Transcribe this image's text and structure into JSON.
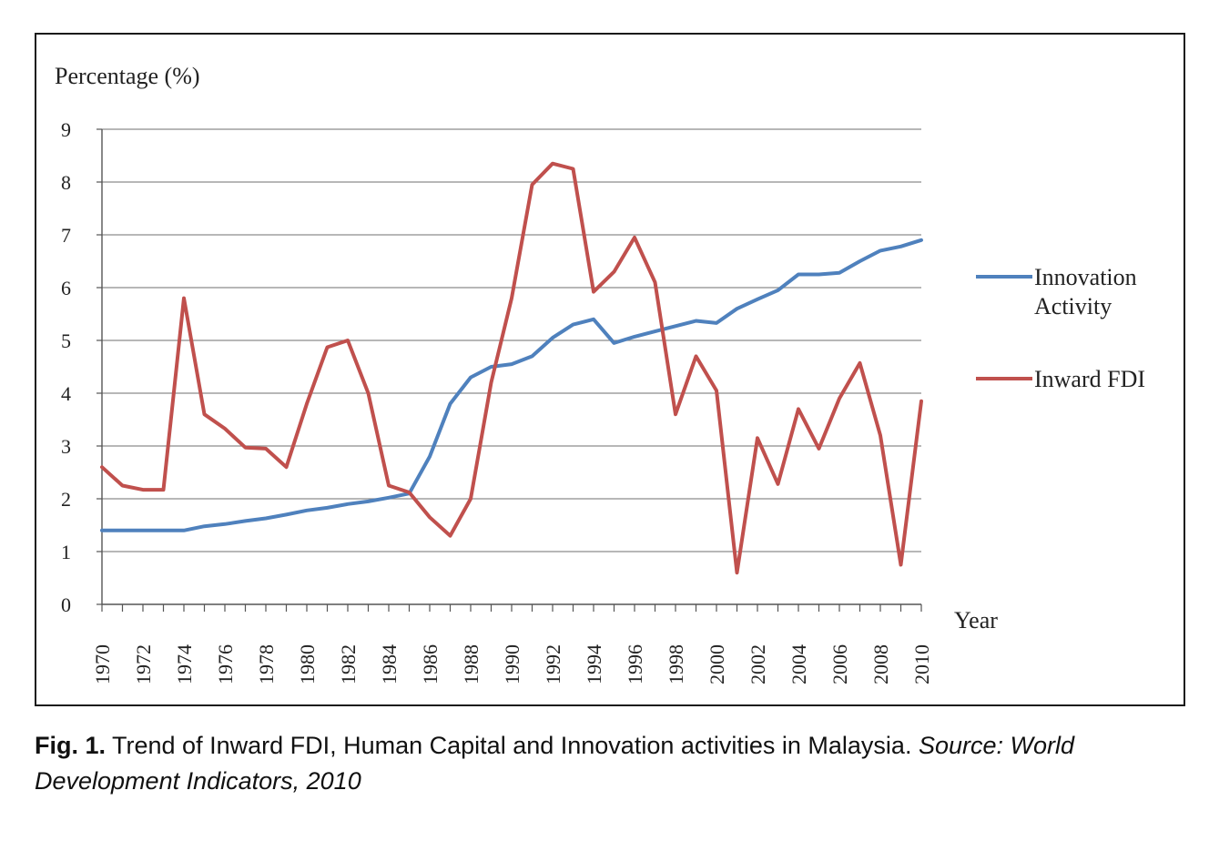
{
  "chart_data": {
    "type": "line",
    "ylabel": "Percentage (%)",
    "xlabel": "Year",
    "ylim": [
      0,
      9
    ],
    "yticks": [
      0,
      1,
      2,
      3,
      4,
      5,
      6,
      7,
      8,
      9
    ],
    "xlim": [
      1970,
      2010
    ],
    "xtick_labels": [
      "1970",
      "1972",
      "1974",
      "1976",
      "1978",
      "1980",
      "1982",
      "1984",
      "1986",
      "1988",
      "1990",
      "1992",
      "1994",
      "1996",
      "1998",
      "2000",
      "2002",
      "2004",
      "2006",
      "2008",
      "2010"
    ],
    "grid": "horizontal",
    "legend_position": "right",
    "x": [
      1970,
      1971,
      1972,
      1973,
      1974,
      1975,
      1976,
      1977,
      1978,
      1979,
      1980,
      1981,
      1982,
      1983,
      1984,
      1985,
      1986,
      1987,
      1988,
      1989,
      1990,
      1991,
      1992,
      1993,
      1994,
      1995,
      1996,
      1997,
      1998,
      1999,
      2000,
      2001,
      2002,
      2003,
      2004,
      2005,
      2006,
      2007,
      2008,
      2009,
      2010
    ],
    "series": [
      {
        "name": "Innovation Activity",
        "color": "#4f81bd",
        "values": [
          1.4,
          1.4,
          1.4,
          1.4,
          1.4,
          1.48,
          1.52,
          1.58,
          1.63,
          1.7,
          1.78,
          1.83,
          1.9,
          1.95,
          2.02,
          2.1,
          2.8,
          3.8,
          4.3,
          4.5,
          4.55,
          4.7,
          5.05,
          5.3,
          5.4,
          4.95,
          5.07,
          5.17,
          5.27,
          5.37,
          5.33,
          5.6,
          5.78,
          5.95,
          6.25,
          6.25,
          6.28,
          6.5,
          6.7,
          6.78,
          6.9
        ]
      },
      {
        "name": "Inward FDI",
        "color": "#c0504d",
        "values": [
          2.6,
          2.25,
          2.17,
          2.17,
          5.8,
          3.6,
          3.33,
          2.97,
          2.95,
          2.6,
          3.8,
          4.87,
          5.0,
          4.0,
          2.25,
          2.12,
          1.65,
          1.3,
          2.0,
          4.2,
          5.8,
          7.95,
          8.35,
          8.25,
          5.92,
          6.3,
          6.95,
          6.1,
          3.6,
          4.7,
          4.05,
          0.6,
          3.15,
          2.28,
          3.7,
          2.95,
          3.9,
          4.57,
          3.2,
          0.75,
          3.85
        ]
      }
    ]
  },
  "caption": {
    "label": "Fig. 1.",
    "text": " Trend of Inward FDI, Human Capital and Innovation activities in Malaysia. ",
    "source": "Source: World Development Indicators, 2010"
  }
}
